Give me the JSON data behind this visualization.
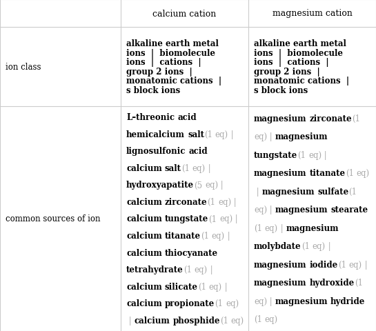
{
  "figsize": [
    5.45,
    4.81
  ],
  "dpi": 100,
  "bg_color": "#ffffff",
  "line_color": "#cccccc",
  "text_color": "#000000",
  "gray_color": "#aaaaaa",
  "header_font_size": 9.0,
  "cell_font_size": 8.5,
  "header_row": [
    "",
    "calcium cation",
    "magnesium cation"
  ],
  "ion_class_lines": [
    "alkaline earth metal",
    "ions  |  biomolecule",
    "ions  |  cations  |",
    "group 2 ions  |",
    "monatomic cations  |",
    "s block ions"
  ],
  "calcium_sources": [
    [
      {
        "t": "L–threonic acid hemicalcium salt",
        "bold": true
      },
      {
        "t": " (1 eq)",
        "bold": false
      }
    ],
    [
      {
        "t": " | ",
        "bold": false
      }
    ],
    [
      {
        "t": "lignosulfonic acid calcium salt",
        "bold": true
      },
      {
        "t": " (1 eq)",
        "bold": false
      }
    ],
    [
      {
        "t": " | ",
        "bold": false
      }
    ],
    [
      {
        "t": "hydroxyapatite",
        "bold": true
      },
      {
        "t": " (5 eq)",
        "bold": false
      }
    ],
    [
      {
        "t": " | ",
        "bold": false
      }
    ],
    [
      {
        "t": "calcium zirconate",
        "bold": true
      },
      {
        "t": " (1 eq)",
        "bold": false
      }
    ],
    [
      {
        "t": " | ",
        "bold": false
      }
    ],
    [
      {
        "t": "calcium tungstate",
        "bold": true
      },
      {
        "t": " (1 eq)",
        "bold": false
      }
    ],
    [
      {
        "t": " | ",
        "bold": false
      }
    ],
    [
      {
        "t": "calcium titanate",
        "bold": true
      },
      {
        "t": " (1 eq)",
        "bold": false
      }
    ],
    [
      {
        "t": " | ",
        "bold": false
      }
    ],
    [
      {
        "t": "calcium thiocyanate tetrahydrate",
        "bold": true
      },
      {
        "t": " (1 eq)",
        "bold": false
      }
    ],
    [
      {
        "t": " | ",
        "bold": false
      }
    ],
    [
      {
        "t": "calcium silicate",
        "bold": true
      },
      {
        "t": " (1 eq)",
        "bold": false
      }
    ],
    [
      {
        "t": " | ",
        "bold": false
      }
    ],
    [
      {
        "t": "calcium propionate",
        "bold": true
      },
      {
        "t": " (1 eq)",
        "bold": false
      }
    ],
    [
      {
        "t": " | ",
        "bold": false
      }
    ],
    [
      {
        "t": "calcium phosphide",
        "bold": true
      },
      {
        "t": " (1 eq)",
        "bold": false
      }
    ]
  ],
  "magnesium_sources": [
    [
      {
        "t": "magnesium zirconate",
        "bold": true
      },
      {
        "t": " (1 eq)",
        "bold": false
      }
    ],
    [
      {
        "t": " | ",
        "bold": false
      }
    ],
    [
      {
        "t": "magnesium tungstate",
        "bold": true
      },
      {
        "t": " (1 eq)",
        "bold": false
      }
    ],
    [
      {
        "t": " | ",
        "bold": false
      }
    ],
    [
      {
        "t": "magnesium titanate",
        "bold": true
      },
      {
        "t": " (1 eq)",
        "bold": false
      }
    ],
    [
      {
        "t": " | ",
        "bold": false
      }
    ],
    [
      {
        "t": "magnesium sulfate",
        "bold": true
      },
      {
        "t": " (1 eq)",
        "bold": false
      }
    ],
    [
      {
        "t": " | ",
        "bold": false
      }
    ],
    [
      {
        "t": "magnesium stearate",
        "bold": true
      },
      {
        "t": " (1 eq)",
        "bold": false
      }
    ],
    [
      {
        "t": " | ",
        "bold": false
      }
    ],
    [
      {
        "t": "magnesium molybdate",
        "bold": true
      },
      {
        "t": " (1 eq)",
        "bold": false
      }
    ],
    [
      {
        "t": " | ",
        "bold": false
      }
    ],
    [
      {
        "t": "magnesium iodide",
        "bold": true
      },
      {
        "t": " (1 eq)",
        "bold": false
      }
    ],
    [
      {
        "t": " | ",
        "bold": false
      }
    ],
    [
      {
        "t": "magnesium hydroxide",
        "bold": true
      },
      {
        "t": " (1 eq)",
        "bold": false
      }
    ],
    [
      {
        "t": " | ",
        "bold": false
      }
    ],
    [
      {
        "t": "magnesium hydride",
        "bold": true
      },
      {
        "t": " (1 eq)",
        "bold": false
      }
    ]
  ]
}
